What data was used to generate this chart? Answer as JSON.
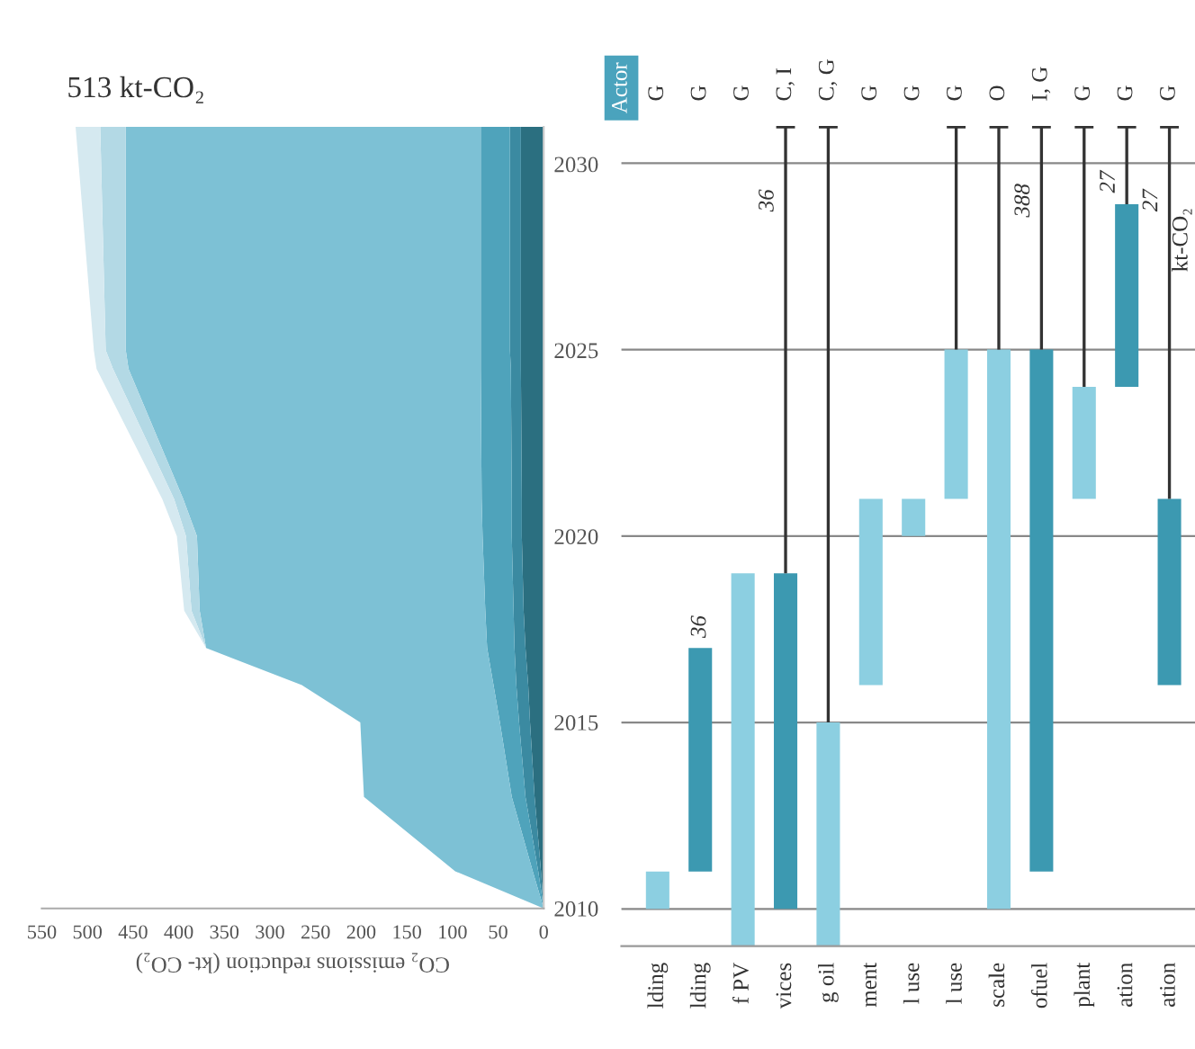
{
  "chart_data": [
    {
      "type": "area",
      "stacked": true,
      "orientation": "horizontal",
      "xlabel": "CO₂ emissions reduction (kt- CO₂)",
      "x": [
        2010,
        2011,
        2013,
        2015,
        2016,
        2017,
        2018,
        2020,
        2021,
        2024.5,
        2025,
        2031
      ],
      "series": [
        {
          "color": "#2b6f80",
          "values": [
            0,
            3,
            10,
            15,
            17,
            20,
            22,
            24,
            24,
            25,
            25,
            25
          ]
        },
        {
          "color": "#3b8aa1",
          "values": [
            0,
            3,
            10,
            12,
            13,
            12,
            11,
            11,
            11,
            11,
            12,
            12
          ]
        },
        {
          "color": "#4fa3bb",
          "values": [
            0,
            6,
            15,
            21,
            25,
            30,
            31,
            32,
            33,
            33,
            32,
            32
          ]
        },
        {
          "color": "#7dc1d5",
          "values": [
            0,
            85,
            162,
            153,
            210,
            308,
            313,
            313,
            327,
            386,
            389,
            389
          ]
        },
        {
          "color": "#b3d9e5",
          "values": [
            0,
            0,
            0,
            0,
            0,
            0,
            9,
            12,
            10,
            17,
            22,
            28
          ]
        },
        {
          "color": "#d5e9f0",
          "values": [
            0,
            0,
            0,
            0,
            0,
            0,
            8,
            10,
            13,
            18,
            13,
            27
          ]
        }
      ],
      "xlim": [
        550,
        0
      ],
      "xticks": [
        0,
        50,
        100,
        150,
        200,
        250,
        300,
        350,
        400,
        450,
        500,
        550
      ],
      "ylim": [
        2010,
        2031
      ],
      "yticks": [
        2010,
        2015,
        2020,
        2025,
        2030
      ],
      "grid": false,
      "annotations": [
        "513 kt-CO₂"
      ]
    },
    {
      "type": "bar",
      "categories": [
        "lding",
        "lding",
        "f PV",
        "vices",
        "g oil",
        "ment",
        "l use",
        "l use",
        "scale",
        "ofuel",
        "plant",
        "ation",
        "ation"
      ],
      "base": [
        2010,
        2011,
        2009,
        2010,
        2009,
        2016,
        2020,
        2021,
        2010,
        2011,
        2021,
        2024,
        2016
      ],
      "values": [
        1,
        6,
        10,
        9,
        6,
        5,
        1,
        4,
        15,
        14,
        3,
        4.9,
        5
      ],
      "colors": [
        "#8ccfe1",
        "#3c99b1",
        "#8ccfe1",
        "#3c99b1",
        "#8ccfe1",
        "#8ccfe1",
        "#8ccfe1",
        "#8ccfe1",
        "#8ccfe1",
        "#3c99b1",
        "#8ccfe1",
        "#3c99b1",
        "#3c99b1"
      ],
      "errors": [
        null,
        null,
        null,
        [
          2019,
          2031
        ],
        [
          2015,
          2031
        ],
        null,
        null,
        [
          2025,
          2031
        ],
        [
          2025,
          2031
        ],
        [
          2025,
          2031
        ],
        [
          2024,
          2031
        ],
        [
          2028.9,
          2031
        ],
        [
          2021,
          2031
        ]
      ],
      "ylim": [
        2009,
        2031
      ],
      "yticks": [
        2010,
        2015,
        2020,
        2025,
        2030
      ],
      "grid": "y",
      "tick_labels": "x",
      "annotations": [
        "Actor",
        "G",
        "G",
        "G",
        "C, I",
        "C, G",
        "G",
        "G",
        "G",
        "O",
        "I, G",
        "G",
        "G",
        "G",
        "kt-CO₂",
        "36",
        {
          "text": "36",
          "x": "vices",
          "y": 2029
        },
        {
          "text": "388",
          "x": "ofuel",
          "y": 2029
        },
        {
          "text": "27",
          "x": "ation",
          "y": 2029.5
        },
        {
          "text": "27",
          "x": "ation",
          "y": 2029
        }
      ]
    }
  ]
}
